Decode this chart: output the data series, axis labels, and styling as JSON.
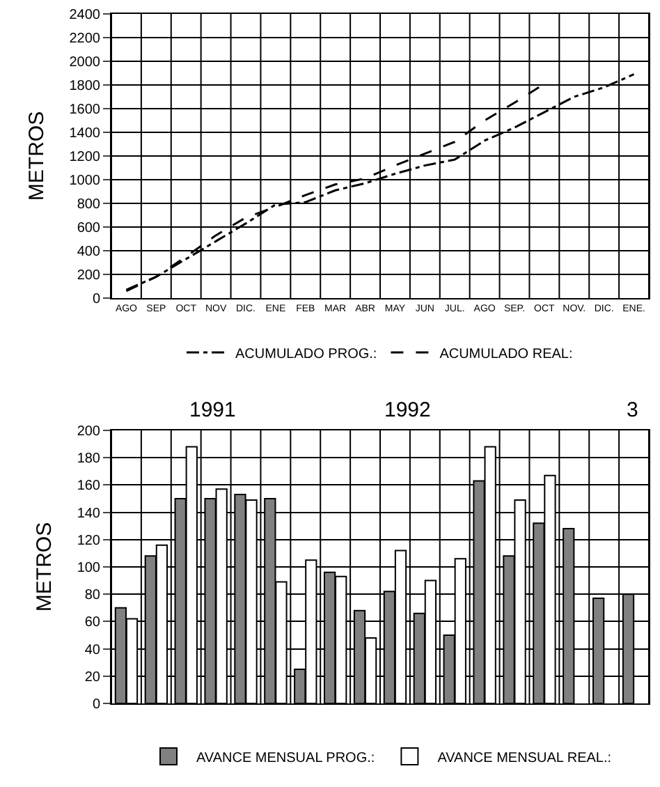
{
  "chart_data": [
    {
      "type": "line",
      "categories": [
        "AGO",
        "SEP",
        "OCT",
        "NOV",
        "DIC.",
        "ENE",
        "FEB",
        "MAR",
        "ABR",
        "MAY",
        "JUN",
        "JUL.",
        "AGO",
        "SEP.",
        "OCT",
        "NOV.",
        "DIC.",
        "ENE."
      ],
      "ylabel": "METROS",
      "ylim": [
        0,
        2400
      ],
      "yticks": [
        0,
        200,
        400,
        600,
        800,
        1000,
        1200,
        1400,
        1600,
        1800,
        2000,
        2200,
        2400
      ],
      "grid": true,
      "legend": "bottom",
      "marker": "none",
      "series": [
        {
          "name": "ACUMULADO PROG.:",
          "color": "#000000",
          "line_style": "dashdot",
          "values": [
            70,
            180,
            330,
            480,
            630,
            790,
            810,
            910,
            970,
            1050,
            1120,
            1170,
            1330,
            1440,
            1570,
            1700,
            1780,
            1890
          ]
        },
        {
          "name": "ACUMULADO REAL:",
          "color": "#000000",
          "line_style": "dashed",
          "values": [
            60,
            180,
            350,
            530,
            680,
            770,
            870,
            960,
            1010,
            1120,
            1220,
            1320,
            1500,
            1650,
            1810,
            null,
            null,
            null
          ]
        }
      ]
    },
    {
      "type": "bar",
      "categories": [
        null,
        null,
        null,
        null,
        null,
        null,
        null,
        null,
        null,
        null,
        null,
        null,
        null,
        null,
        null,
        null,
        null,
        null
      ],
      "ylabel": "METROS",
      "ylim": [
        0,
        200
      ],
      "yticks": [
        0,
        20,
        40,
        60,
        80,
        100,
        120,
        140,
        160,
        180,
        200
      ],
      "grid": true,
      "legend": "bottom",
      "annotations": [
        "1991",
        "1992",
        "3"
      ],
      "series": [
        {
          "name": "AVANCE MENSUAL PROG.:",
          "color": "#808080",
          "values": [
            70,
            108,
            150,
            150,
            153,
            150,
            25,
            96,
            68,
            82,
            66,
            50,
            163,
            108,
            132,
            128,
            77,
            80
          ]
        },
        {
          "name": "AVANCE MENSUAL REAL.:",
          "color": "#ffffff",
          "values": [
            62,
            116,
            188,
            157,
            149,
            89,
            105,
            93,
            48,
            112,
            90,
            106,
            188,
            149,
            167,
            null,
            null,
            null
          ]
        }
      ]
    }
  ]
}
